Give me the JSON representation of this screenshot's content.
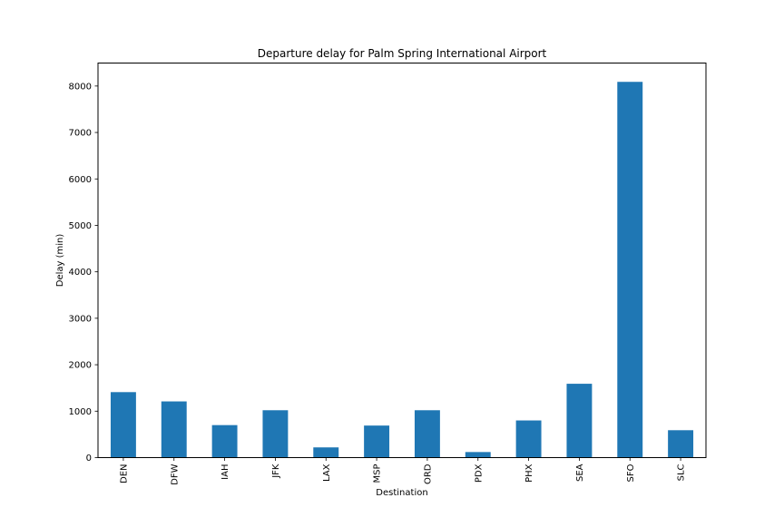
{
  "chart_data": {
    "type": "bar",
    "title": "Departure delay for Palm Spring International Airport",
    "xlabel": "Destination",
    "ylabel": "Delay (min)",
    "categories": [
      "DEN",
      "DFW",
      "IAH",
      "JFK",
      "LAX",
      "MSP",
      "ORD",
      "PDX",
      "PHX",
      "SEA",
      "SFO",
      "SLC"
    ],
    "values": [
      1410,
      1210,
      700,
      1020,
      220,
      690,
      1020,
      120,
      800,
      1590,
      8090,
      590
    ],
    "yticks": [
      0,
      1000,
      2000,
      3000,
      4000,
      5000,
      6000,
      7000,
      8000
    ],
    "ylim": [
      0,
      8495
    ],
    "grid": false,
    "legend": false,
    "colors": {
      "bar": "#1f77b4",
      "axes": "#000000",
      "background": "#ffffff"
    }
  }
}
